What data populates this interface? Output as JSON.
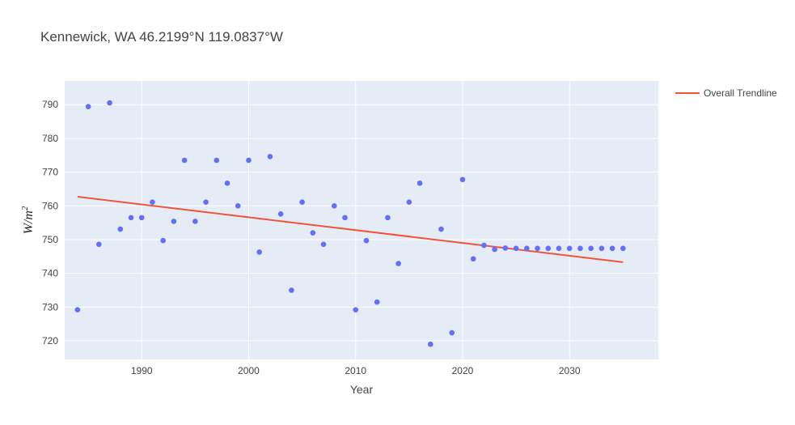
{
  "chart_data": {
    "type": "scatter",
    "title": "Kennewick, WA 46.2199°N 119.0837°W",
    "xlabel": "Year",
    "ylabel": "W/m",
    "ylabel_exponent": "2",
    "xlim": [
      1982.8,
      2038.3
    ],
    "ylim": [
      714.5,
      797.0
    ],
    "x_ticks": [
      1990,
      2000,
      2010,
      2020,
      2030
    ],
    "y_ticks": [
      720,
      730,
      740,
      750,
      760,
      770,
      780,
      790
    ],
    "grid": true,
    "legend_position": "top-right",
    "colors": {
      "points": "#636efa",
      "trendline": "#ef553b",
      "plot_bg": "#e5ecf6",
      "grid": "#ffffff"
    },
    "series": [
      {
        "mode": "markers",
        "x": [
          1984,
          1985,
          1986,
          1987,
          1988,
          1989,
          1990,
          1991,
          1992,
          1993,
          1994,
          1995,
          1996,
          1997,
          1998,
          1999,
          2000,
          2001,
          2002,
          2003,
          2004,
          2005,
          2006,
          2007,
          2008,
          2009,
          2010,
          2011,
          2012,
          2013,
          2014,
          2015,
          2016,
          2017,
          2018,
          2019,
          2020,
          2021,
          2022,
          2023,
          2024,
          2025,
          2026,
          2027,
          2028,
          2029,
          2030,
          2031,
          2032,
          2033,
          2034,
          2035
        ],
        "y": [
          729.2,
          789.4,
          748.6,
          790.5,
          753.1,
          756.5,
          756.5,
          761.1,
          749.7,
          755.4,
          773.5,
          755.4,
          761.1,
          773.5,
          766.7,
          760.0,
          773.5,
          746.3,
          774.6,
          757.6,
          735.0,
          761.1,
          752.0,
          748.6,
          760.0,
          756.5,
          729.2,
          749.7,
          731.5,
          756.5,
          742.9,
          761.1,
          766.7,
          719.0,
          753.1,
          722.4,
          767.8,
          744.3,
          748.3,
          747.1,
          747.5,
          747.4,
          747.4,
          747.4,
          747.4,
          747.4,
          747.4,
          747.4,
          747.4,
          747.4,
          747.4,
          747.4
        ]
      },
      {
        "name": "Overall Trendline",
        "mode": "lines",
        "x": [
          1984,
          2035
        ],
        "y": [
          762.7,
          743.3
        ]
      }
    ]
  }
}
